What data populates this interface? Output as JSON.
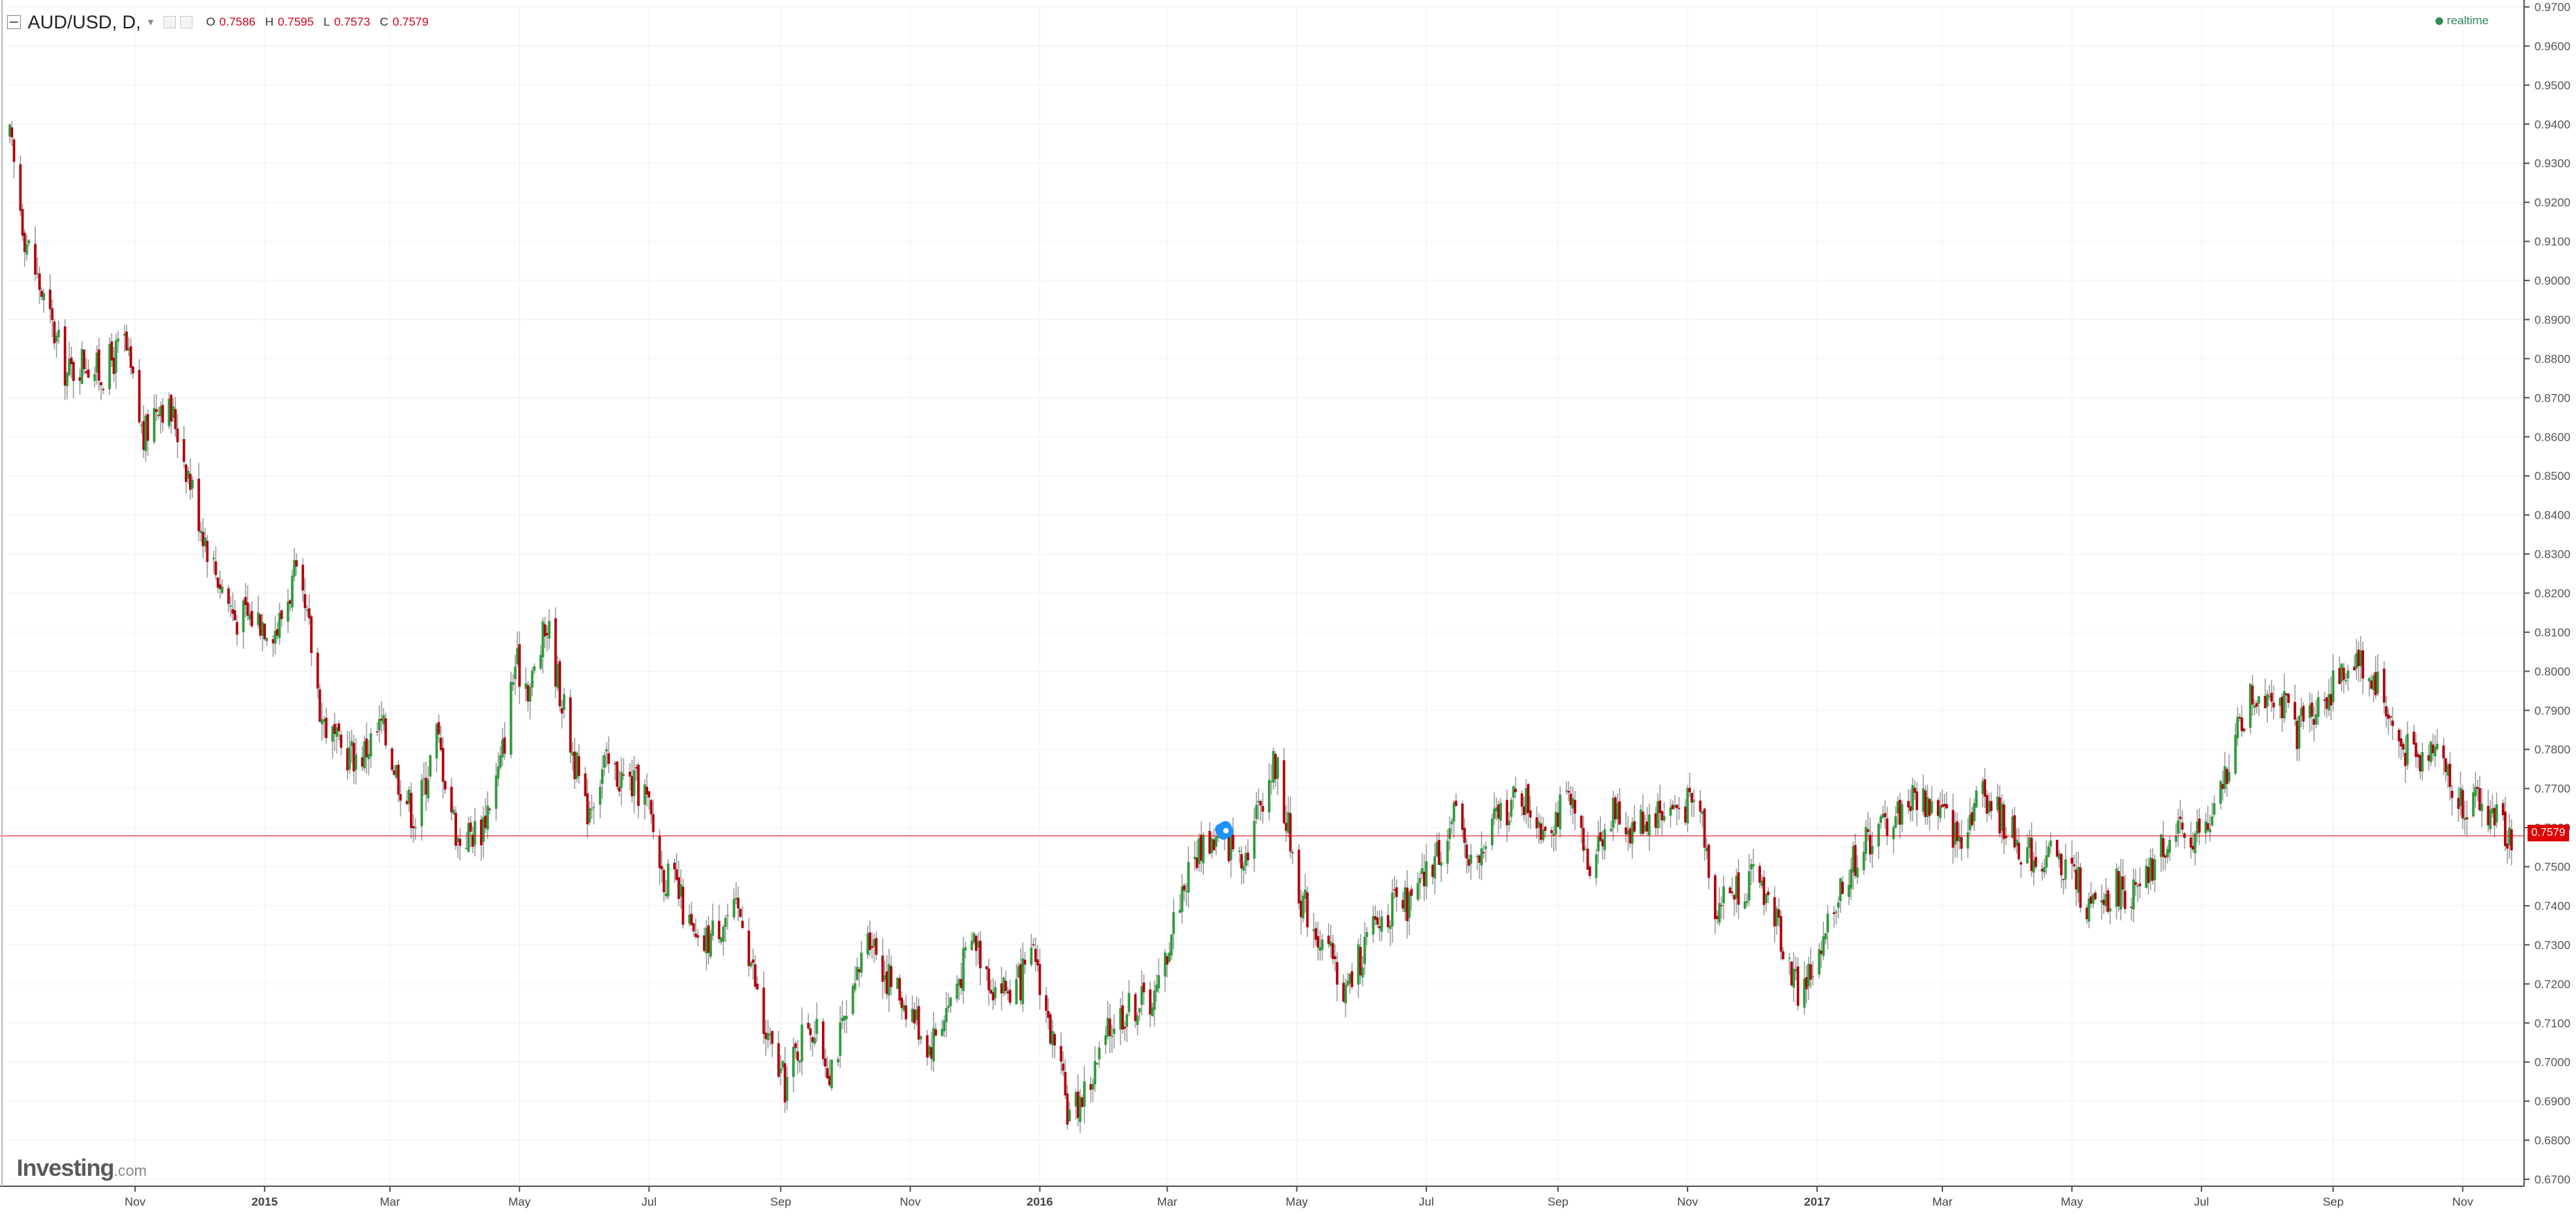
{
  "header": {
    "symbol": "AUD/USD, D,",
    "ohlc": {
      "o_label": "O",
      "o": "0.7586",
      "h_label": "H",
      "h": "0.7595",
      "l_label": "L",
      "l": "0.7573",
      "c_label": "C",
      "c": "0.7579"
    },
    "realtime_label": "realtime"
  },
  "brand": {
    "name": "Investing",
    "suffix": ".com"
  },
  "last_price_label": "0.7579",
  "colors": {
    "up": "#2e9b3a",
    "down": "#b0000b",
    "wick": "#999999",
    "price_line": "#e00000",
    "grid": "#f0f0f0",
    "axis": "#555555"
  },
  "chart_data": {
    "type": "candlestick",
    "title": "",
    "xlabel": "",
    "ylabel": "",
    "ylim": [
      0.67,
      0.97
    ],
    "x_range": [
      "2014-09-01",
      "2017-11-25"
    ],
    "y_ticks": [
      "0.9700",
      "0.9600",
      "0.9500",
      "0.9400",
      "0.9300",
      "0.9200",
      "0.9100",
      "0.9000",
      "0.8900",
      "0.8800",
      "0.8700",
      "0.8600",
      "0.8500",
      "0.8400",
      "0.8300",
      "0.8200",
      "0.8100",
      "0.8000",
      "0.7900",
      "0.7800",
      "0.7700",
      "0.7600",
      "0.7500",
      "0.7400",
      "0.7300",
      "0.7200",
      "0.7100",
      "0.7000",
      "0.6900",
      "0.6800",
      "0.6700"
    ],
    "x_ticks": [
      {
        "date": "2014-11-01",
        "label": "Nov"
      },
      {
        "date": "2015-01-01",
        "label": "2015"
      },
      {
        "date": "2015-03-01",
        "label": "Mar"
      },
      {
        "date": "2015-05-01",
        "label": "May"
      },
      {
        "date": "2015-07-01",
        "label": "Jul"
      },
      {
        "date": "2015-09-01",
        "label": "Sep"
      },
      {
        "date": "2015-11-01",
        "label": "Nov"
      },
      {
        "date": "2016-01-01",
        "label": "2016"
      },
      {
        "date": "2016-03-01",
        "label": "Mar"
      },
      {
        "date": "2016-05-01",
        "label": "May"
      },
      {
        "date": "2016-07-01",
        "label": "Jul"
      },
      {
        "date": "2016-09-01",
        "label": "Sep"
      },
      {
        "date": "2016-11-01",
        "label": "Nov"
      },
      {
        "date": "2017-01-01",
        "label": "2017"
      },
      {
        "date": "2017-03-01",
        "label": "Mar"
      },
      {
        "date": "2017-05-01",
        "label": "May"
      },
      {
        "date": "2017-07-01",
        "label": "Jul"
      },
      {
        "date": "2017-09-01",
        "label": "Sep"
      },
      {
        "date": "2017-11-01",
        "label": "Nov"
      }
    ],
    "last_price": 0.7579,
    "grid": true,
    "close_path": [
      {
        "date": "2014-09-03",
        "close": 0.936
      },
      {
        "date": "2014-09-10",
        "close": 0.912
      },
      {
        "date": "2014-09-20",
        "close": 0.893
      },
      {
        "date": "2014-09-30",
        "close": 0.876
      },
      {
        "date": "2014-10-08",
        "close": 0.88
      },
      {
        "date": "2014-10-16",
        "close": 0.876
      },
      {
        "date": "2014-10-27",
        "close": 0.884
      },
      {
        "date": "2014-11-05",
        "close": 0.859
      },
      {
        "date": "2014-11-12",
        "close": 0.87
      },
      {
        "date": "2014-11-20",
        "close": 0.864
      },
      {
        "date": "2014-12-01",
        "close": 0.84
      },
      {
        "date": "2014-12-08",
        "close": 0.827
      },
      {
        "date": "2014-12-18",
        "close": 0.814
      },
      {
        "date": "2014-12-28",
        "close": 0.814
      },
      {
        "date": "2015-01-07",
        "close": 0.811
      },
      {
        "date": "2015-01-15",
        "close": 0.824
      },
      {
        "date": "2015-01-22",
        "close": 0.81
      },
      {
        "date": "2015-01-28",
        "close": 0.788
      },
      {
        "date": "2015-02-05",
        "close": 0.78
      },
      {
        "date": "2015-02-15",
        "close": 0.778
      },
      {
        "date": "2015-02-25",
        "close": 0.786
      },
      {
        "date": "2015-03-05",
        "close": 0.773
      },
      {
        "date": "2015-03-13",
        "close": 0.762
      },
      {
        "date": "2015-03-23",
        "close": 0.784
      },
      {
        "date": "2015-04-02",
        "close": 0.757
      },
      {
        "date": "2015-04-13",
        "close": 0.76
      },
      {
        "date": "2015-04-22",
        "close": 0.776
      },
      {
        "date": "2015-04-29",
        "close": 0.802
      },
      {
        "date": "2015-05-06",
        "close": 0.796
      },
      {
        "date": "2015-05-14",
        "close": 0.812
      },
      {
        "date": "2015-05-22",
        "close": 0.79
      },
      {
        "date": "2015-06-01",
        "close": 0.764
      },
      {
        "date": "2015-06-10",
        "close": 0.776
      },
      {
        "date": "2015-06-20",
        "close": 0.772
      },
      {
        "date": "2015-06-29",
        "close": 0.769
      },
      {
        "date": "2015-07-07",
        "close": 0.749
      },
      {
        "date": "2015-07-14",
        "close": 0.744
      },
      {
        "date": "2015-07-24",
        "close": 0.728
      },
      {
        "date": "2015-08-05",
        "close": 0.737
      },
      {
        "date": "2015-08-14",
        "close": 0.738
      },
      {
        "date": "2015-08-24",
        "close": 0.708
      },
      {
        "date": "2015-09-03",
        "close": 0.694
      },
      {
        "date": "2015-09-14",
        "close": 0.711
      },
      {
        "date": "2015-09-24",
        "close": 0.699
      },
      {
        "date": "2015-10-05",
        "close": 0.715
      },
      {
        "date": "2015-10-12",
        "close": 0.735
      },
      {
        "date": "2015-10-21",
        "close": 0.722
      },
      {
        "date": "2015-11-02",
        "close": 0.713
      },
      {
        "date": "2015-11-10",
        "close": 0.704
      },
      {
        "date": "2015-11-20",
        "close": 0.716
      },
      {
        "date": "2015-12-01",
        "close": 0.732
      },
      {
        "date": "2015-12-10",
        "close": 0.72
      },
      {
        "date": "2015-12-20",
        "close": 0.718
      },
      {
        "date": "2015-12-30",
        "close": 0.727
      },
      {
        "date": "2016-01-08",
        "close": 0.702
      },
      {
        "date": "2016-01-15",
        "close": 0.686
      },
      {
        "date": "2016-01-25",
        "close": 0.695
      },
      {
        "date": "2016-02-05",
        "close": 0.711
      },
      {
        "date": "2016-02-15",
        "close": 0.715
      },
      {
        "date": "2016-02-25",
        "close": 0.717
      },
      {
        "date": "2016-03-07",
        "close": 0.743
      },
      {
        "date": "2016-03-18",
        "close": 0.757
      },
      {
        "date": "2016-03-28",
        "close": 0.756
      },
      {
        "date": "2016-04-07",
        "close": 0.754
      },
      {
        "date": "2016-04-15",
        "close": 0.769
      },
      {
        "date": "2016-04-21",
        "close": 0.777
      },
      {
        "date": "2016-05-03",
        "close": 0.742
      },
      {
        "date": "2016-05-12",
        "close": 0.732
      },
      {
        "date": "2016-05-24",
        "close": 0.718
      },
      {
        "date": "2016-06-03",
        "close": 0.731
      },
      {
        "date": "2016-06-13",
        "close": 0.739
      },
      {
        "date": "2016-06-24",
        "close": 0.74
      },
      {
        "date": "2016-07-05",
        "close": 0.752
      },
      {
        "date": "2016-07-14",
        "close": 0.762
      },
      {
        "date": "2016-07-25",
        "close": 0.75
      },
      {
        "date": "2016-08-04",
        "close": 0.764
      },
      {
        "date": "2016-08-15",
        "close": 0.768
      },
      {
        "date": "2016-08-25",
        "close": 0.761
      },
      {
        "date": "2016-09-06",
        "close": 0.766
      },
      {
        "date": "2016-09-15",
        "close": 0.751
      },
      {
        "date": "2016-09-26",
        "close": 0.764
      },
      {
        "date": "2016-10-05",
        "close": 0.76
      },
      {
        "date": "2016-10-17",
        "close": 0.764
      },
      {
        "date": "2016-10-27",
        "close": 0.765
      },
      {
        "date": "2016-11-07",
        "close": 0.766
      },
      {
        "date": "2016-11-14",
        "close": 0.74
      },
      {
        "date": "2016-11-24",
        "close": 0.745
      },
      {
        "date": "2016-12-05",
        "close": 0.747
      },
      {
        "date": "2016-12-15",
        "close": 0.733
      },
      {
        "date": "2016-12-23",
        "close": 0.718
      },
      {
        "date": "2017-01-03",
        "close": 0.727
      },
      {
        "date": "2017-01-13",
        "close": 0.747
      },
      {
        "date": "2017-01-24",
        "close": 0.756
      },
      {
        "date": "2017-02-06",
        "close": 0.763
      },
      {
        "date": "2017-02-16",
        "close": 0.768
      },
      {
        "date": "2017-02-27",
        "close": 0.765
      },
      {
        "date": "2017-03-08",
        "close": 0.757
      },
      {
        "date": "2017-03-20",
        "close": 0.77
      },
      {
        "date": "2017-03-30",
        "close": 0.761
      },
      {
        "date": "2017-04-10",
        "close": 0.753
      },
      {
        "date": "2017-04-20",
        "close": 0.752
      },
      {
        "date": "2017-05-01",
        "close": 0.749
      },
      {
        "date": "2017-05-10",
        "close": 0.738
      },
      {
        "date": "2017-05-22",
        "close": 0.745
      },
      {
        "date": "2017-06-02",
        "close": 0.742
      },
      {
        "date": "2017-06-13",
        "close": 0.756
      },
      {
        "date": "2017-06-26",
        "close": 0.758
      },
      {
        "date": "2017-07-06",
        "close": 0.76
      },
      {
        "date": "2017-07-14",
        "close": 0.778
      },
      {
        "date": "2017-07-24",
        "close": 0.793
      },
      {
        "date": "2017-08-03",
        "close": 0.796
      },
      {
        "date": "2017-08-15",
        "close": 0.785
      },
      {
        "date": "2017-08-25",
        "close": 0.792
      },
      {
        "date": "2017-09-05",
        "close": 0.798
      },
      {
        "date": "2017-09-11",
        "close": 0.804
      },
      {
        "date": "2017-09-22",
        "close": 0.797
      },
      {
        "date": "2017-10-02",
        "close": 0.781
      },
      {
        "date": "2017-10-12",
        "close": 0.776
      },
      {
        "date": "2017-10-20",
        "close": 0.785
      },
      {
        "date": "2017-10-27",
        "close": 0.768
      },
      {
        "date": "2017-11-06",
        "close": 0.766
      },
      {
        "date": "2017-11-14",
        "close": 0.764
      },
      {
        "date": "2017-11-24",
        "close": 0.7579
      }
    ]
  }
}
